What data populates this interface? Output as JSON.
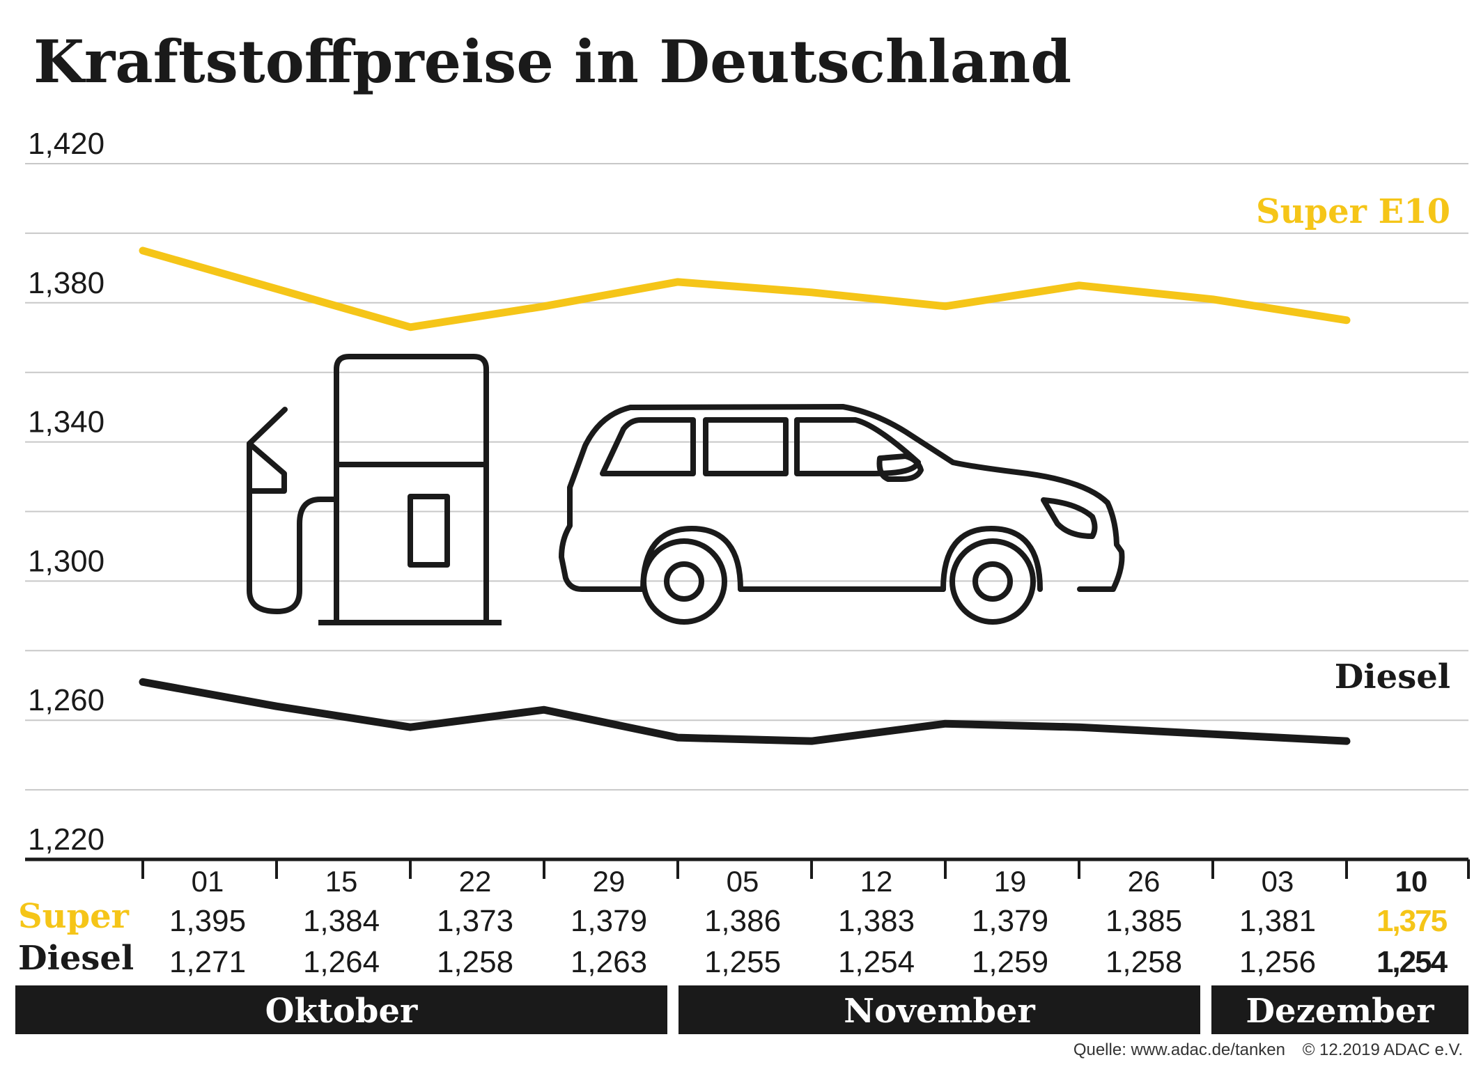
{
  "title": "Kraftstoffpreise in Deutschland",
  "source": "Quelle: www.adac.de/tanken",
  "copyright": "© 12.2019  ADAC e.V.",
  "row_labels": {
    "super": "Super",
    "diesel": "Diesel"
  },
  "colors": {
    "super": "#F5C518",
    "diesel": "#1a1a1a",
    "grid": "#c8c8c8",
    "month_bar": "#1a1a1a",
    "month_text": "#ffffff"
  },
  "icons": [
    "fuel-pump-icon",
    "car-icon"
  ],
  "chart_data": {
    "type": "line",
    "x": [
      "01",
      "15",
      "22",
      "29",
      "05",
      "12",
      "19",
      "26",
      "03",
      "10"
    ],
    "months": [
      {
        "label": "Oktober",
        "span": [
          0,
          3
        ]
      },
      {
        "label": "November",
        "span": [
          4,
          7
        ]
      },
      {
        "label": "Dezember",
        "span": [
          8,
          9
        ]
      }
    ],
    "series": [
      {
        "name": "Super E10",
        "key": "super",
        "values": [
          1.395,
          1.384,
          1.373,
          1.379,
          1.386,
          1.383,
          1.379,
          1.385,
          1.381,
          1.375
        ],
        "labels": [
          "1,395",
          "1,384",
          "1,373",
          "1,379",
          "1,386",
          "1,383",
          "1,379",
          "1,385",
          "1,381",
          "1,375"
        ]
      },
      {
        "name": "Diesel",
        "key": "diesel",
        "values": [
          1.271,
          1.264,
          1.258,
          1.263,
          1.255,
          1.254,
          1.259,
          1.258,
          1.256,
          1.254
        ],
        "labels": [
          "1,271",
          "1,264",
          "1,258",
          "1,263",
          "1,255",
          "1,254",
          "1,259",
          "1,258",
          "1,256",
          "1,254"
        ]
      }
    ],
    "ylim": [
      1.22,
      1.42
    ],
    "yticks": [
      "1,420",
      "1,380",
      "1,340",
      "1,300",
      "1,260",
      "1,220"
    ],
    "ytick_values": [
      1.42,
      1.38,
      1.34,
      1.3,
      1.26,
      1.22
    ],
    "grid": true,
    "legend": "inline-right",
    "highlight_last": true
  }
}
